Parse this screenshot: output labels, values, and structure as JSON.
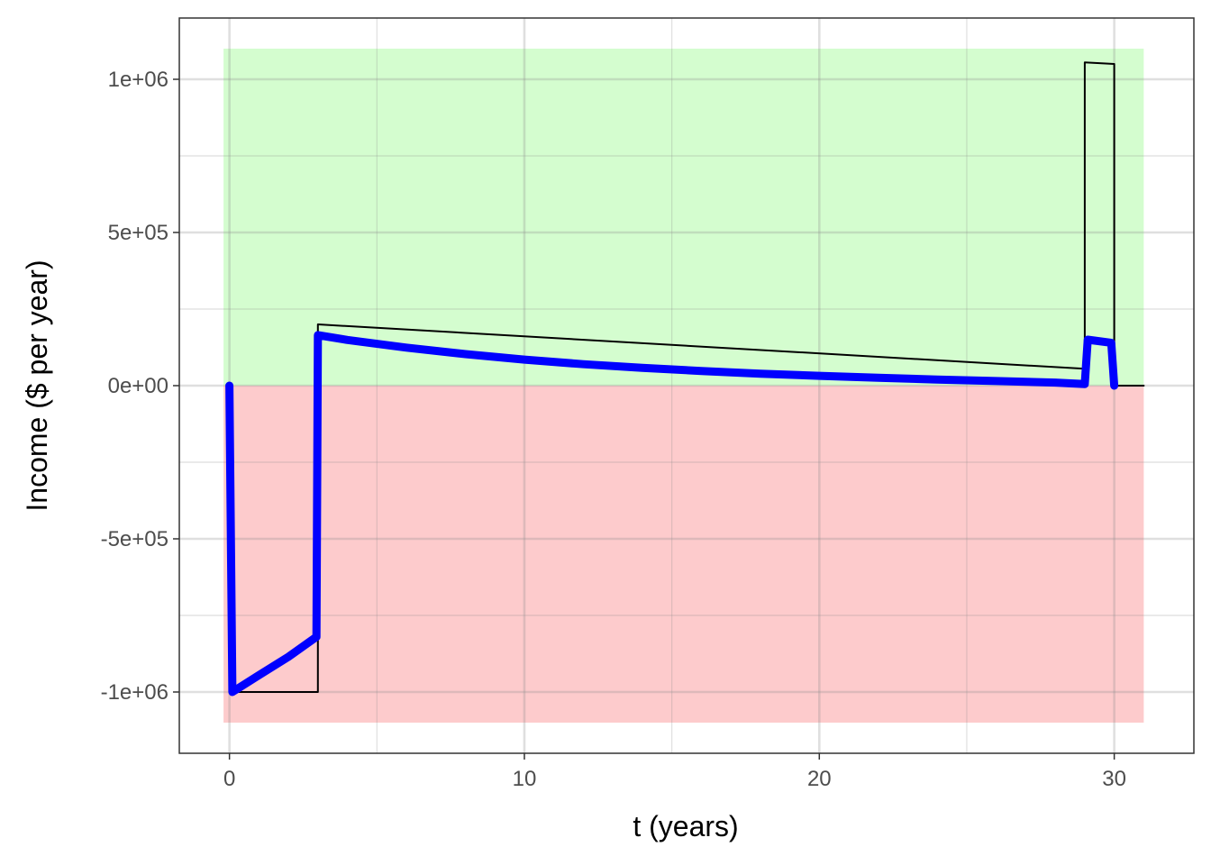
{
  "chart_data": {
    "type": "line",
    "xlabel": "t (years)",
    "ylabel": "Income ($ per year)",
    "xlim": [
      -1.7,
      32.7
    ],
    "ylim": [
      -1200000,
      1200000
    ],
    "x_ticks": [
      0,
      10,
      20,
      30
    ],
    "x_tick_labels": [
      "0",
      "10",
      "20",
      "30"
    ],
    "y_ticks": [
      -1000000,
      -500000,
      0,
      500000,
      1000000
    ],
    "y_tick_labels": [
      "-1e+06",
      "-5e+05",
      "0e+00",
      "5e+05",
      "1e+06"
    ],
    "grid": true,
    "background_bands": [
      {
        "label": "positive",
        "x": [
          -0.2,
          31
        ],
        "y": [
          0,
          1100000
        ],
        "color": "#d4fdcf"
      },
      {
        "label": "negative",
        "x": [
          -0.2,
          31
        ],
        "y": [
          -1100000,
          0
        ],
        "color": "#fdcbcc"
      }
    ],
    "series": [
      {
        "color": "#000000",
        "points": [
          [
            0,
            0
          ],
          [
            0,
            -1000000
          ],
          [
            3,
            -1000000
          ],
          [
            3,
            200000
          ],
          [
            29,
            55000
          ],
          [
            29,
            1055000
          ],
          [
            30,
            1050000
          ],
          [
            30,
            0
          ],
          [
            31,
            0
          ]
        ]
      },
      {
        "color": "#0000ff",
        "points": [
          [
            0,
            0
          ],
          [
            0.1,
            -1000000
          ],
          [
            1,
            -945000
          ],
          [
            2,
            -885000
          ],
          [
            2.95,
            -820000
          ],
          [
            3,
            165000
          ],
          [
            4,
            149000
          ],
          [
            6,
            124000
          ],
          [
            8,
            103000
          ],
          [
            10,
            85000
          ],
          [
            12,
            70000
          ],
          [
            14,
            58000
          ],
          [
            16,
            48000
          ],
          [
            18,
            39000
          ],
          [
            20,
            32000
          ],
          [
            22,
            26000
          ],
          [
            24,
            20000
          ],
          [
            26,
            15000
          ],
          [
            28,
            10000
          ],
          [
            29,
            5000
          ],
          [
            29.1,
            150000
          ],
          [
            29.9,
            140000
          ],
          [
            30,
            0
          ]
        ]
      }
    ]
  }
}
